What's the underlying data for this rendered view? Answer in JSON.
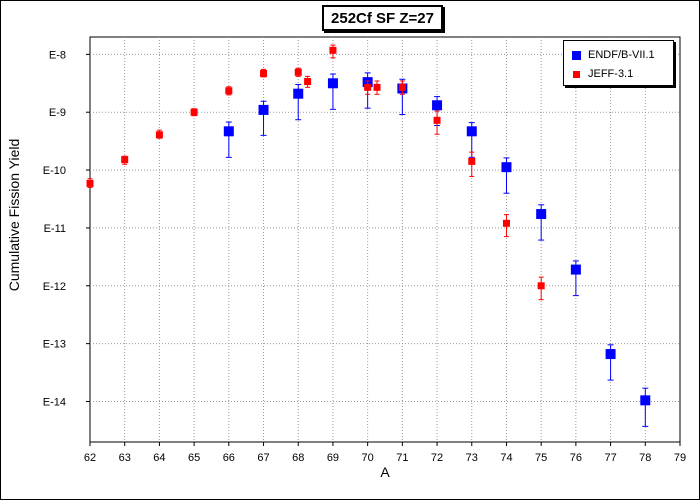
{
  "chart_data": {
    "type": "scatter",
    "title": "252Cf SF Z=27",
    "xlabel": "A",
    "ylabel": "Cumulative Fission Yield",
    "xlim": [
      62,
      79
    ],
    "xticks": [
      "62",
      "63",
      "64",
      "65",
      "66",
      "67",
      "68",
      "69",
      "70",
      "71",
      "72",
      "73",
      "74",
      "75",
      "76",
      "77",
      "78",
      "79"
    ],
    "ylim_log10": [
      -14.7,
      -7.7
    ],
    "yscale": "log",
    "yticks": [
      {
        "label": "E-8",
        "exp": -8
      },
      {
        "label": "E-9",
        "exp": -9
      },
      {
        "label": "E-10",
        "exp": -10
      },
      {
        "label": "E-11",
        "exp": -11
      },
      {
        "label": "E-12",
        "exp": -12
      },
      {
        "label": "E-13",
        "exp": -13
      },
      {
        "label": "E-14",
        "exp": -14
      }
    ],
    "grid": true,
    "legend_position": "top-right",
    "series": [
      {
        "name": "ENDF/B-VII.1",
        "color": "#0000ff",
        "marker": "square-large",
        "points": [
          {
            "x": 66,
            "log10y": -9.33,
            "log10lo": -9.78,
            "log10hi": -9.17
          },
          {
            "x": 67,
            "log10y": -8.96,
            "log10lo": -9.4,
            "log10hi": -8.81
          },
          {
            "x": 68,
            "log10y": -8.68,
            "log10lo": -9.13,
            "log10hi": -8.52
          },
          {
            "x": 69,
            "log10y": -8.5,
            "log10lo": -8.95,
            "log10hi": -8.34
          },
          {
            "x": 70,
            "log10y": -8.48,
            "log10lo": -8.93,
            "log10hi": -8.32
          },
          {
            "x": 71,
            "log10y": -8.59,
            "log10lo": -9.04,
            "log10hi": -8.43
          },
          {
            "x": 72,
            "log10y": -8.88,
            "log10lo": -9.23,
            "log10hi": -8.73
          },
          {
            "x": 73,
            "log10y": -9.33,
            "log10lo": -9.78,
            "log10hi": -9.18
          },
          {
            "x": 74,
            "log10y": -9.95,
            "log10lo": -10.4,
            "log10hi": -9.79
          },
          {
            "x": 75,
            "log10y": -10.76,
            "log10lo": -11.21,
            "log10hi": -10.6
          },
          {
            "x": 76,
            "log10y": -11.72,
            "log10lo": -12.17,
            "log10hi": -11.57
          },
          {
            "x": 77,
            "log10y": -13.18,
            "log10lo": -13.63,
            "log10hi": -13.02
          },
          {
            "x": 78,
            "log10y": -13.98,
            "log10lo": -14.43,
            "log10hi": -13.77
          }
        ]
      },
      {
        "name": "JEFF-3.1",
        "color": "#ff0000",
        "marker": "square-small",
        "points": [
          {
            "x": 62,
            "log10y": -10.23,
            "log10lo": -10.3,
            "log10hi": -10.15
          },
          {
            "x": 63,
            "log10y": -9.82,
            "log10lo": -9.9,
            "log10hi": -9.76
          },
          {
            "x": 64,
            "log10y": -9.39,
            "log10lo": -9.45,
            "log10hi": -9.31
          },
          {
            "x": 65,
            "log10y": -9.0,
            "log10lo": -9.06,
            "log10hi": -8.94
          },
          {
            "x": 66,
            "log10y": -8.63,
            "log10lo": -8.7,
            "log10hi": -8.56
          },
          {
            "x": 67,
            "log10y": -8.33,
            "log10lo": -8.39,
            "log10hi": -8.26
          },
          {
            "x": 68,
            "log10y": -8.31,
            "log10lo": -8.38,
            "log10hi": -8.24
          },
          {
            "x": 68.27,
            "log10y": -8.47,
            "log10lo": -8.57,
            "log10hi": -8.38
          },
          {
            "x": 69,
            "log10y": -7.93,
            "log10lo": -8.06,
            "log10hi": -7.84
          },
          {
            "x": 70,
            "log10y": -8.57,
            "log10lo": -8.69,
            "log10hi": -8.46
          },
          {
            "x": 70.27,
            "log10y": -8.57,
            "log10lo": -8.69,
            "log10hi": -8.46
          },
          {
            "x": 71,
            "log10y": -8.57,
            "log10lo": -8.69,
            "log10hi": -8.46
          },
          {
            "x": 72,
            "log10y": -9.14,
            "log10lo": -9.38,
            "log10hi": -8.98
          },
          {
            "x": 73,
            "log10y": -9.85,
            "log10lo": -10.11,
            "log10hi": -9.69
          },
          {
            "x": 74,
            "log10y": -10.92,
            "log10lo": -11.15,
            "log10hi": -10.77
          },
          {
            "x": 75,
            "log10y": -12.0,
            "log10lo": -12.24,
            "log10hi": -11.85
          }
        ]
      }
    ]
  }
}
